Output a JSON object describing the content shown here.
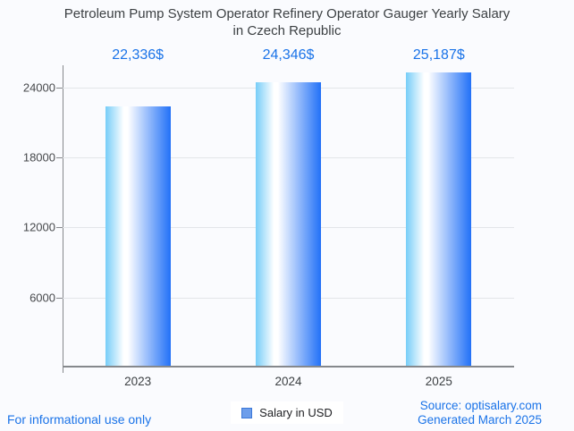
{
  "title": "Petroleum Pump System Operator Refinery Operator Gauger Yearly Salary\nin Czech Republic",
  "chart_data": {
    "type": "bar",
    "title": "Petroleum Pump System Operator Refinery Operator Gauger Yearly Salary in Czech Republic",
    "categories": [
      "2023",
      "2024",
      "2025"
    ],
    "values": [
      22336,
      24346,
      25187
    ],
    "value_labels": [
      "22,336$",
      "24,346$",
      "25,187$"
    ],
    "yticks": [
      6000,
      12000,
      18000,
      24000
    ],
    "ylim": [
      0,
      25900
    ],
    "grid": true,
    "legend": "Salary in USD",
    "legend_position": "bottom"
  },
  "footer": {
    "disclaimer": "For informational use only",
    "source": "Source: optisalary.com",
    "generated": "Generated March 2025"
  },
  "colors": {
    "accent_blue": "#1a73e8",
    "text_dark": "#3c4043",
    "axis_line": "#85888c",
    "grid_line": "#e3e5e9",
    "background": "#fafbfe",
    "bar_gradient": [
      "#76cdf8",
      "#ffffff",
      "#2271f7"
    ],
    "legend_swatch_fill": "#6d9eeb",
    "legend_swatch_border": "#3c78d8"
  }
}
